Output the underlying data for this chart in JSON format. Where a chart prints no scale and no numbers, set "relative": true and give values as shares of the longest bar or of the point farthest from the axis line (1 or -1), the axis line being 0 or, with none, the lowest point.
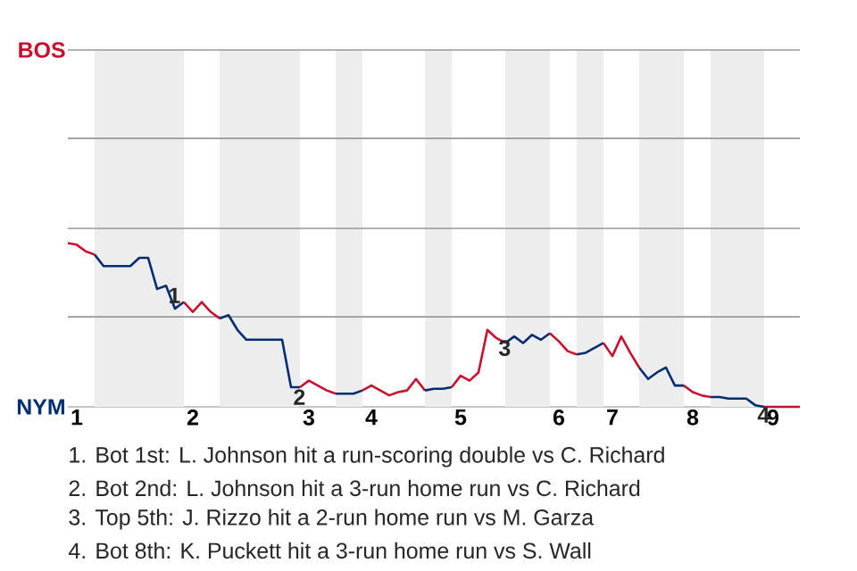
{
  "chart_data": {
    "type": "line",
    "relative": true,
    "categories": [
      null,
      "1",
      null,
      null,
      null,
      null,
      null,
      null,
      null,
      null,
      null,
      null,
      null,
      null,
      "2",
      null,
      null,
      null,
      null,
      null,
      null,
      null,
      null,
      null,
      null,
      null,
      null,
      "3",
      null,
      null,
      null,
      null,
      null,
      null,
      "4",
      null,
      null,
      null,
      null,
      null,
      null,
      null,
      null,
      null,
      "5",
      null,
      null,
      null,
      null,
      null,
      null,
      null,
      null,
      null,
      null,
      "6",
      null,
      null,
      null,
      null,
      null,
      "7",
      null,
      null,
      null,
      null,
      null,
      null,
      null,
      null,
      "8",
      null,
      null,
      null,
      null,
      null,
      null,
      null,
      null,
      "9",
      null,
      null,
      null
    ],
    "series": [
      {
        "color": "#c8102e",
        "values": [
          1.0,
          0.99,
          0.95,
          0.93,
          null,
          null,
          null,
          null,
          null,
          null,
          null,
          null,
          null,
          null,
          null,
          null,
          null,
          null,
          null,
          null,
          null,
          null,
          null,
          null,
          null,
          null,
          null,
          null,
          null,
          null,
          null,
          null,
          null,
          null,
          null,
          null,
          null,
          null,
          null,
          null,
          null,
          null,
          null,
          null,
          null,
          null,
          null,
          null,
          null,
          null,
          null,
          null,
          null,
          null,
          null,
          null,
          null,
          null,
          null,
          null,
          null,
          null,
          null,
          null,
          null,
          null,
          null,
          null,
          null,
          null,
          null,
          null,
          null,
          null,
          null,
          null,
          null,
          null,
          null,
          null,
          null,
          null,
          null
        ]
      },
      {
        "color": "#002d72",
        "values": [
          null,
          null,
          null,
          0.93,
          0.86,
          0.86,
          0.86,
          0.86,
          0.91,
          0.91,
          0.72,
          0.74,
          0.6,
          0.64,
          null,
          null,
          null,
          null,
          null,
          null,
          null,
          null,
          null,
          null,
          null,
          null,
          null,
          null,
          null,
          null,
          null,
          null,
          null,
          null,
          null,
          null,
          null,
          null,
          null,
          null,
          null,
          null,
          null,
          null,
          null,
          null,
          null,
          null,
          null,
          null,
          null,
          null,
          null,
          null,
          null,
          null,
          null,
          null,
          null,
          null,
          null,
          null,
          null,
          null,
          null,
          null,
          null,
          null,
          null,
          null,
          null,
          null,
          null,
          null,
          null,
          null,
          null,
          null,
          null,
          null,
          null,
          null,
          null
        ]
      },
      {
        "color": "#c8102e",
        "values": [
          null,
          null,
          null,
          null,
          null,
          null,
          null,
          null,
          null,
          null,
          null,
          null,
          null,
          0.64,
          0.58,
          0.64,
          0.58,
          0.54,
          null,
          null,
          null,
          null,
          null,
          null,
          null,
          null,
          null,
          null,
          null,
          null,
          null,
          null,
          null,
          null,
          null,
          null,
          null,
          null,
          null,
          null,
          null,
          null,
          null,
          null,
          null,
          null,
          null,
          null,
          null,
          null,
          null,
          null,
          null,
          null,
          null,
          null,
          null,
          null,
          null,
          null,
          null,
          null,
          null,
          null,
          null,
          null,
          null,
          null,
          null,
          null,
          null,
          null,
          null,
          null,
          null,
          null,
          null,
          null,
          null,
          null,
          null,
          null,
          null
        ]
      },
      {
        "color": "#002d72",
        "values": [
          null,
          null,
          null,
          null,
          null,
          null,
          null,
          null,
          null,
          null,
          null,
          null,
          null,
          null,
          null,
          null,
          null,
          0.54,
          0.56,
          0.47,
          0.41,
          0.41,
          0.41,
          0.41,
          0.41,
          0.12,
          0.12,
          null,
          null,
          null,
          null,
          null,
          null,
          null,
          null,
          null,
          null,
          null,
          null,
          null,
          null,
          null,
          null,
          null,
          null,
          null,
          null,
          null,
          null,
          null,
          null,
          null,
          null,
          null,
          null,
          null,
          null,
          null,
          null,
          null,
          null,
          null,
          null,
          null,
          null,
          null,
          null,
          null,
          null,
          null,
          null,
          null,
          null,
          null,
          null,
          null,
          null,
          null,
          null,
          null,
          null,
          null,
          null
        ]
      },
      {
        "color": "#c9102e",
        "values": [
          null,
          null,
          null,
          null,
          null,
          null,
          null,
          null,
          null,
          null,
          null,
          null,
          null,
          null,
          null,
          null,
          null,
          null,
          null,
          null,
          null,
          null,
          null,
          null,
          null,
          null,
          0.12,
          0.16,
          0.13,
          0.1,
          0.08,
          null,
          null,
          null,
          null,
          null,
          null,
          null,
          null,
          null,
          null,
          null,
          null,
          null,
          null,
          null,
          null,
          null,
          null,
          null,
          null,
          null,
          null,
          null,
          null,
          null,
          null,
          null,
          null,
          null,
          null,
          null,
          null,
          null,
          null,
          null,
          null,
          null,
          null,
          null,
          null,
          null,
          null,
          null,
          null,
          null,
          null,
          null,
          null,
          null,
          null,
          null,
          null
        ]
      },
      {
        "color": "#002d72",
        "values": [
          null,
          null,
          null,
          null,
          null,
          null,
          null,
          null,
          null,
          null,
          null,
          null,
          null,
          null,
          null,
          null,
          null,
          null,
          null,
          null,
          null,
          null,
          null,
          null,
          null,
          null,
          null,
          null,
          null,
          null,
          0.08,
          0.08,
          0.08,
          0.1,
          null,
          null,
          null,
          null,
          null,
          null,
          null,
          null,
          null,
          null,
          null,
          null,
          null,
          null,
          null,
          null,
          null,
          null,
          null,
          null,
          null,
          null,
          null,
          null,
          null,
          null,
          null,
          null,
          null,
          null,
          null,
          null,
          null,
          null,
          null,
          null,
          null,
          null,
          null,
          null,
          null,
          null,
          null,
          null,
          null,
          null,
          null,
          null,
          null
        ]
      },
      {
        "color": "#c8112e",
        "values": [
          null,
          null,
          null,
          null,
          null,
          null,
          null,
          null,
          null,
          null,
          null,
          null,
          null,
          null,
          null,
          null,
          null,
          null,
          null,
          null,
          null,
          null,
          null,
          null,
          null,
          null,
          null,
          null,
          null,
          null,
          null,
          null,
          null,
          0.1,
          0.13,
          0.1,
          0.07,
          0.09,
          0.1,
          0.17,
          0.1,
          null,
          null,
          null,
          null,
          null,
          null,
          null,
          null,
          null,
          null,
          null,
          null,
          null,
          null,
          null,
          null,
          null,
          null,
          null,
          null,
          null,
          null,
          null,
          null,
          null,
          null,
          null,
          null,
          null,
          null,
          null,
          null,
          null,
          null,
          null,
          null,
          null,
          null,
          null,
          null,
          null,
          null
        ]
      },
      {
        "color": "#002d72",
        "values": [
          null,
          null,
          null,
          null,
          null,
          null,
          null,
          null,
          null,
          null,
          null,
          null,
          null,
          null,
          null,
          null,
          null,
          null,
          null,
          null,
          null,
          null,
          null,
          null,
          null,
          null,
          null,
          null,
          null,
          null,
          null,
          null,
          null,
          null,
          null,
          null,
          null,
          null,
          null,
          null,
          0.1,
          0.11,
          0.11,
          0.12,
          null,
          null,
          null,
          null,
          null,
          null,
          null,
          null,
          null,
          null,
          null,
          null,
          null,
          null,
          null,
          null,
          null,
          null,
          null,
          null,
          null,
          null,
          null,
          null,
          null,
          null,
          null,
          null,
          null,
          null,
          null,
          null,
          null,
          null,
          null,
          null,
          null,
          null,
          null
        ]
      },
      {
        "color": "#c8102f",
        "values": [
          null,
          null,
          null,
          null,
          null,
          null,
          null,
          null,
          null,
          null,
          null,
          null,
          null,
          null,
          null,
          null,
          null,
          null,
          null,
          null,
          null,
          null,
          null,
          null,
          null,
          null,
          null,
          null,
          null,
          null,
          null,
          null,
          null,
          null,
          null,
          null,
          null,
          null,
          null,
          null,
          null,
          null,
          null,
          0.12,
          0.19,
          0.16,
          0.21,
          0.47,
          0.42,
          0.39,
          null,
          null,
          null,
          null,
          null,
          null,
          null,
          null,
          null,
          null,
          null,
          null,
          null,
          null,
          null,
          null,
          null,
          null,
          null,
          null,
          null,
          null,
          null,
          null,
          null,
          null,
          null,
          null,
          null,
          null,
          null,
          null,
          null
        ]
      },
      {
        "color": "#002d72",
        "values": [
          null,
          null,
          null,
          null,
          null,
          null,
          null,
          null,
          null,
          null,
          null,
          null,
          null,
          null,
          null,
          null,
          null,
          null,
          null,
          null,
          null,
          null,
          null,
          null,
          null,
          null,
          null,
          null,
          null,
          null,
          null,
          null,
          null,
          null,
          null,
          null,
          null,
          null,
          null,
          null,
          null,
          null,
          null,
          null,
          null,
          null,
          null,
          null,
          null,
          0.39,
          0.43,
          0.39,
          0.44,
          0.41,
          0.45,
          null,
          null,
          null,
          null,
          null,
          null,
          null,
          null,
          null,
          null,
          null,
          null,
          null,
          null,
          null,
          null,
          null,
          null,
          null,
          null,
          null,
          null,
          null,
          null,
          null,
          null,
          null,
          null
        ]
      },
      {
        "color": "#c8102e",
        "values": [
          null,
          null,
          null,
          null,
          null,
          null,
          null,
          null,
          null,
          null,
          null,
          null,
          null,
          null,
          null,
          null,
          null,
          null,
          null,
          null,
          null,
          null,
          null,
          null,
          null,
          null,
          null,
          null,
          null,
          null,
          null,
          null,
          null,
          null,
          null,
          null,
          null,
          null,
          null,
          null,
          null,
          null,
          null,
          null,
          null,
          null,
          null,
          null,
          null,
          null,
          null,
          null,
          null,
          null,
          0.45,
          0.4,
          0.34,
          0.32,
          null,
          null,
          null,
          null,
          null,
          null,
          null,
          null,
          null,
          null,
          null,
          null,
          null,
          null,
          null,
          null,
          null,
          null,
          null,
          null,
          null,
          null,
          null,
          null,
          null
        ]
      },
      {
        "color": "#002d72",
        "values": [
          null,
          null,
          null,
          null,
          null,
          null,
          null,
          null,
          null,
          null,
          null,
          null,
          null,
          null,
          null,
          null,
          null,
          null,
          null,
          null,
          null,
          null,
          null,
          null,
          null,
          null,
          null,
          null,
          null,
          null,
          null,
          null,
          null,
          null,
          null,
          null,
          null,
          null,
          null,
          null,
          null,
          null,
          null,
          null,
          null,
          null,
          null,
          null,
          null,
          null,
          null,
          null,
          null,
          null,
          null,
          null,
          null,
          0.32,
          0.33,
          0.36,
          0.39,
          null,
          null,
          null,
          null,
          null,
          null,
          null,
          null,
          null,
          null,
          null,
          null,
          null,
          null,
          null,
          null,
          null,
          null,
          null,
          null,
          null,
          null
        ]
      },
      {
        "color": "#c8102e",
        "values": [
          null,
          null,
          null,
          null,
          null,
          null,
          null,
          null,
          null,
          null,
          null,
          null,
          null,
          null,
          null,
          null,
          null,
          null,
          null,
          null,
          null,
          null,
          null,
          null,
          null,
          null,
          null,
          null,
          null,
          null,
          null,
          null,
          null,
          null,
          null,
          null,
          null,
          null,
          null,
          null,
          null,
          null,
          null,
          null,
          null,
          null,
          null,
          null,
          null,
          null,
          null,
          null,
          null,
          null,
          null,
          null,
          null,
          null,
          null,
          null,
          0.39,
          0.31,
          0.43,
          0.33,
          0.24,
          null,
          null,
          null,
          null,
          null,
          null,
          null,
          null,
          null,
          null,
          null,
          null,
          null,
          null,
          null,
          null,
          null,
          null
        ]
      },
      {
        "color": "#002d72",
        "values": [
          null,
          null,
          null,
          null,
          null,
          null,
          null,
          null,
          null,
          null,
          null,
          null,
          null,
          null,
          null,
          null,
          null,
          null,
          null,
          null,
          null,
          null,
          null,
          null,
          null,
          null,
          null,
          null,
          null,
          null,
          null,
          null,
          null,
          null,
          null,
          null,
          null,
          null,
          null,
          null,
          null,
          null,
          null,
          null,
          null,
          null,
          null,
          null,
          null,
          null,
          null,
          null,
          null,
          null,
          null,
          null,
          null,
          null,
          null,
          null,
          null,
          null,
          null,
          null,
          0.24,
          0.17,
          0.21,
          0.24,
          0.13,
          0.13,
          null,
          null,
          null,
          null,
          null,
          null,
          null,
          null,
          null,
          null,
          null,
          null,
          null
        ]
      },
      {
        "color": "#c8102e",
        "values": [
          null,
          null,
          null,
          null,
          null,
          null,
          null,
          null,
          null,
          null,
          null,
          null,
          null,
          null,
          null,
          null,
          null,
          null,
          null,
          null,
          null,
          null,
          null,
          null,
          null,
          null,
          null,
          null,
          null,
          null,
          null,
          null,
          null,
          null,
          null,
          null,
          null,
          null,
          null,
          null,
          null,
          null,
          null,
          null,
          null,
          null,
          null,
          null,
          null,
          null,
          null,
          null,
          null,
          null,
          null,
          null,
          null,
          null,
          null,
          null,
          null,
          null,
          null,
          null,
          null,
          null,
          null,
          null,
          null,
          0.13,
          0.09,
          0.07,
          0.06,
          null,
          null,
          null,
          null,
          null,
          null,
          null,
          null,
          null,
          null
        ]
      },
      {
        "color": "#002d72",
        "values": [
          null,
          null,
          null,
          null,
          null,
          null,
          null,
          null,
          null,
          null,
          null,
          null,
          null,
          null,
          null,
          null,
          null,
          null,
          null,
          null,
          null,
          null,
          null,
          null,
          null,
          null,
          null,
          null,
          null,
          null,
          null,
          null,
          null,
          null,
          null,
          null,
          null,
          null,
          null,
          null,
          null,
          null,
          null,
          null,
          null,
          null,
          null,
          null,
          null,
          null,
          null,
          null,
          null,
          null,
          null,
          null,
          null,
          null,
          null,
          null,
          null,
          null,
          null,
          null,
          null,
          null,
          null,
          null,
          null,
          null,
          null,
          null,
          0.06,
          0.06,
          0.05,
          0.05,
          0.05,
          0.01,
          0,
          null,
          null,
          null,
          null
        ]
      },
      {
        "color": "#c8102e",
        "values": [
          null,
          null,
          null,
          null,
          null,
          null,
          null,
          null,
          null,
          null,
          null,
          null,
          null,
          null,
          null,
          null,
          null,
          null,
          null,
          null,
          null,
          null,
          null,
          null,
          null,
          null,
          null,
          null,
          null,
          null,
          null,
          null,
          null,
          null,
          null,
          null,
          null,
          null,
          null,
          null,
          null,
          null,
          null,
          null,
          null,
          null,
          null,
          null,
          null,
          null,
          null,
          null,
          null,
          null,
          null,
          null,
          null,
          null,
          null,
          null,
          null,
          null,
          null,
          null,
          null,
          null,
          null,
          null,
          null,
          null,
          null,
          null,
          null,
          null,
          null,
          null,
          null,
          null,
          0,
          0,
          0,
          0,
          0
        ]
      }
    ],
    "ref_lines": [
      {
        "axis": "y",
        "value": 0.55,
        "color": "#999999"
      },
      {
        "axis": "y",
        "value": 1.09,
        "color": "#999999"
      },
      {
        "axis": "y",
        "value": 1.64,
        "color": "#999999"
      },
      {
        "axis": "y",
        "value": 2.18,
        "color": "#999999"
      }
    ],
    "annotations": [
      "BOS",
      "NYM",
      {
        "text": "1",
        "y": 0.74
      },
      {
        "text": "2",
        "y": 0.12
      },
      {
        "text": "3",
        "y": 0.42
      },
      {
        "text": "4",
        "y": 0.01
      },
      "1. Bot 1st: L. Johnson hit a run-scoring double vs C. Richard",
      "2. Bot 2nd: L. Johnson hit a 3-run home run vs C. Richard",
      "3. Top 5th: J. Rizzo hit a 2-run home run vs M. Garza",
      "4. Bot 8th: K. Puckett hit a 3-run home run vs S. Wall"
    ]
  }
}
